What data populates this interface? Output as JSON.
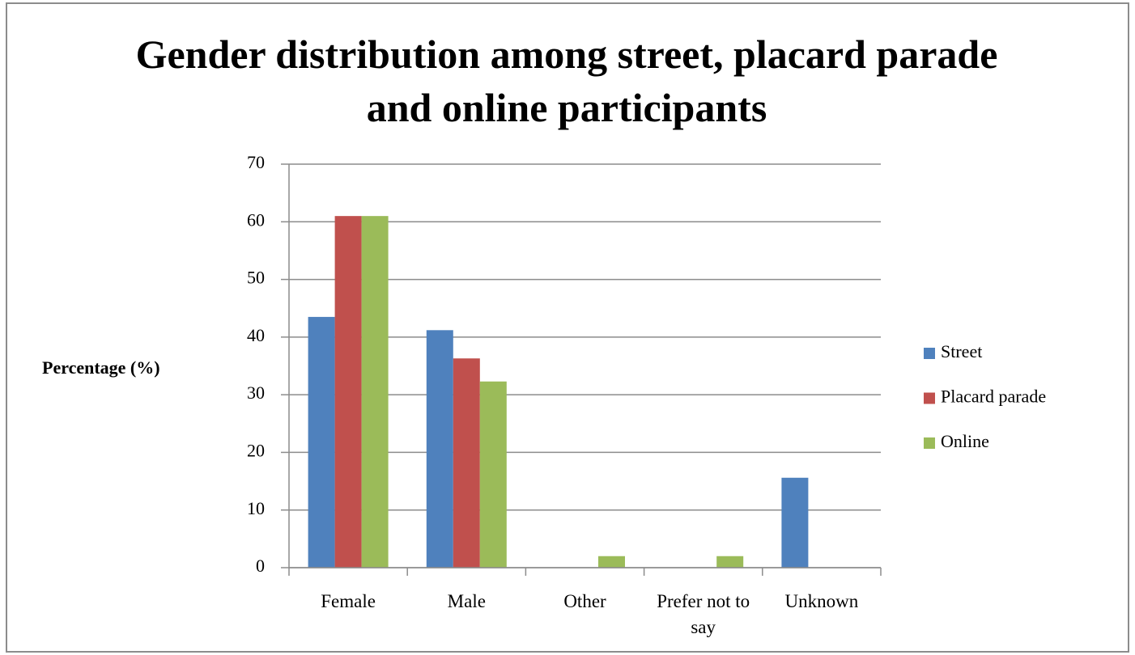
{
  "chart_data": {
    "type": "bar",
    "title": "Gender distribution among street, placard parade and online participants",
    "y_label": "Percentage (%)",
    "categories": [
      "Female",
      "Male",
      "Other",
      "Prefer not to say",
      "Unknown"
    ],
    "series": [
      {
        "name": "Street",
        "color": "#4f81bd",
        "values": [
          43.5,
          41.2,
          0,
          0,
          15.6
        ]
      },
      {
        "name": "Placard parade",
        "color": "#c0504d",
        "values": [
          61,
          36.3,
          0,
          0,
          0
        ]
      },
      {
        "name": "Online",
        "color": "#9bbb59",
        "values": [
          61,
          32.3,
          2,
          2,
          0
        ]
      }
    ],
    "ylim": [
      0,
      70
    ],
    "yticks": [
      0,
      10,
      20,
      30,
      40,
      50,
      60,
      70
    ],
    "grid": true,
    "legend": "right"
  }
}
